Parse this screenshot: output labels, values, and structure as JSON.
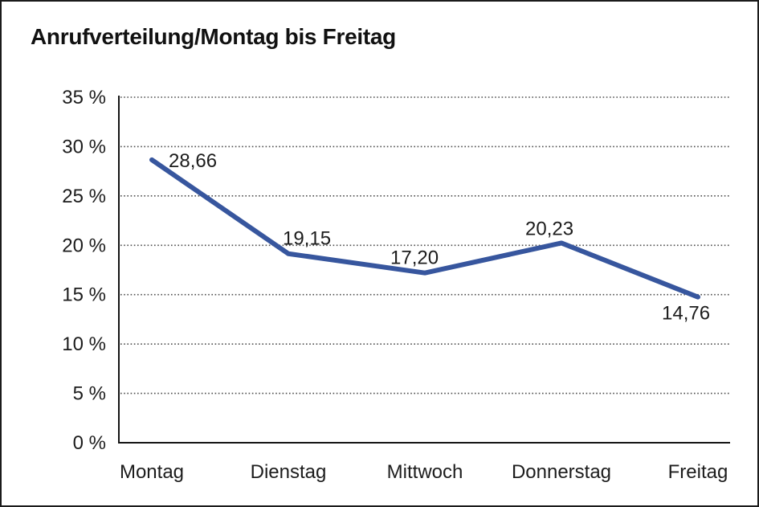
{
  "window": {
    "background": "#ffffff",
    "border_color": "#1b1b1b"
  },
  "header": {
    "title": "Anrufverteilung/Montag bis Freitag"
  },
  "chart_data": {
    "type": "line",
    "title": "Anrufverteilung/Montag bis Freitag",
    "categories": [
      "Montag",
      "Dienstag",
      "Mittwoch",
      "Donnerstag",
      "Freitag"
    ],
    "series": [
      {
        "name": "Anrufverteilung",
        "values": [
          28.66,
          19.15,
          17.2,
          20.23,
          14.76
        ],
        "color": "#37569E"
      }
    ],
    "data_labels": [
      "28,66",
      "19,15",
      "17,20",
      "20,23",
      "14,76"
    ],
    "xlabel": "",
    "ylabel": "",
    "y_ticks": [
      {
        "value": 35,
        "label": "35 %"
      },
      {
        "value": 30,
        "label": "30 %"
      },
      {
        "value": 25,
        "label": "25 %"
      },
      {
        "value": 20,
        "label": "20 %"
      },
      {
        "value": 15,
        "label": "15 %"
      },
      {
        "value": 10,
        "label": "10 %"
      },
      {
        "value": 5,
        "label": "5 %"
      },
      {
        "value": 0,
        "label": "0 %"
      }
    ],
    "ylim": [
      0,
      35
    ],
    "grid": {
      "horizontal": true,
      "style": "dotted",
      "color": "#4f4f4f"
    },
    "axis_color": "#141414",
    "legend": "none",
    "value_format": "decimal-comma"
  }
}
